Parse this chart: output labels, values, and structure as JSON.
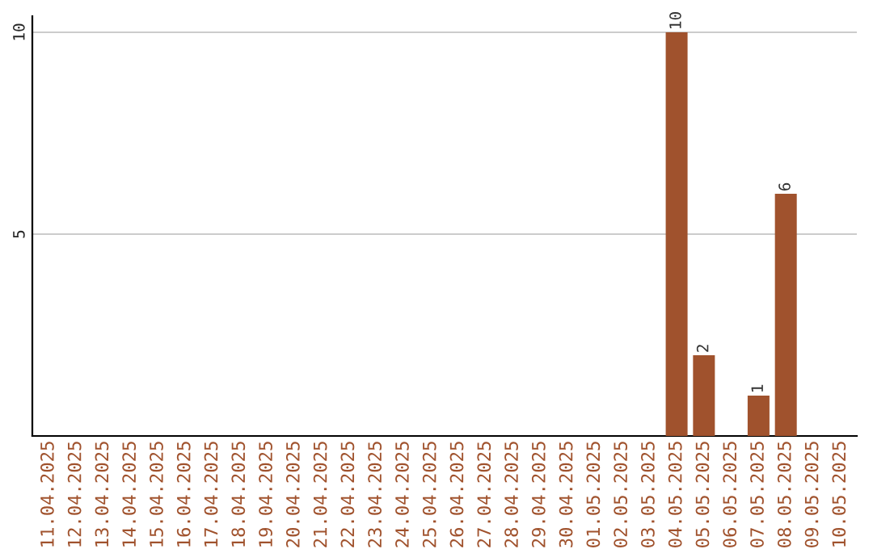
{
  "chart_data": {
    "type": "bar",
    "categories": [
      "11.04.2025",
      "12.04.2025",
      "13.04.2025",
      "14.04.2025",
      "15.04.2025",
      "16.04.2025",
      "17.04.2025",
      "18.04.2025",
      "19.04.2025",
      "20.04.2025",
      "21.04.2025",
      "22.04.2025",
      "23.04.2025",
      "24.04.2025",
      "25.04.2025",
      "26.04.2025",
      "27.04.2025",
      "28.04.2025",
      "29.04.2025",
      "30.04.2025",
      "01.05.2025",
      "02.05.2025",
      "03.05.2025",
      "04.05.2025",
      "05.05.2025",
      "06.05.2025",
      "07.05.2025",
      "08.05.2025",
      "09.05.2025",
      "10.05.2025"
    ],
    "values": [
      0,
      0,
      0,
      0,
      0,
      0,
      0,
      0,
      0,
      0,
      0,
      0,
      0,
      0,
      0,
      0,
      0,
      0,
      0,
      0,
      0,
      0,
      0,
      10,
      2,
      0,
      1,
      6,
      0,
      0
    ],
    "value_labels": [
      null,
      null,
      null,
      null,
      null,
      null,
      null,
      null,
      null,
      null,
      null,
      null,
      null,
      null,
      null,
      null,
      null,
      null,
      null,
      null,
      null,
      null,
      null,
      "10",
      "2",
      null,
      "1",
      "6",
      null,
      null
    ],
    "color": "#a0522d",
    "ylim": [
      0,
      10.4
    ],
    "yticks": [
      5,
      10
    ],
    "grid": "y"
  }
}
